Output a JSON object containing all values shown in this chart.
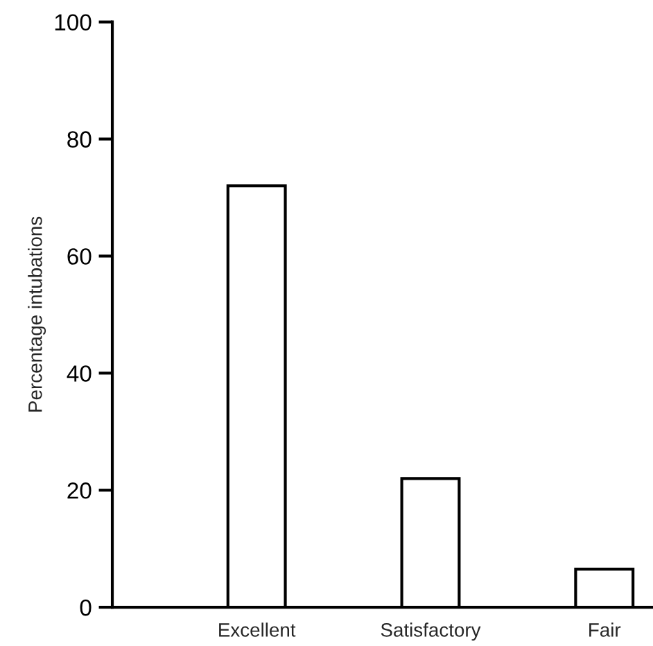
{
  "chart_data": {
    "type": "bar",
    "ylabel": "Percentage intubations",
    "categories": [
      "Excellent",
      "Satisfactory",
      "Fair"
    ],
    "values": [
      72,
      22,
      6.5
    ],
    "color": "#ffffff",
    "ylim": [
      0,
      100
    ],
    "yticks": [
      0,
      20,
      40,
      60,
      80,
      100
    ],
    "grid": false,
    "legend": false
  }
}
